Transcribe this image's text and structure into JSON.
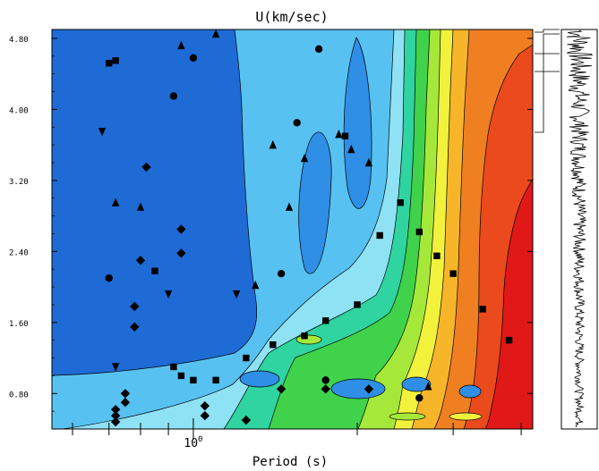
{
  "chart_data": {
    "type": "heatmap",
    "title": "U(km/sec)",
    "xlabel": "Period (s)",
    "ylabel": "",
    "x_scale": "log",
    "x_tick_labels": [
      "10^0"
    ],
    "y_ticks": [
      0.8,
      1.6,
      2.4,
      3.2,
      4.0,
      4.8
    ],
    "y_tick_labels": [
      "0.80",
      "1.60",
      "2.40",
      "3.20",
      "4.00",
      "4.80"
    ],
    "ylim": [
      0.4,
      4.9
    ],
    "legend": "none",
    "colormap": [
      "#1e6bd6",
      "#2f8ee6",
      "#57c2f2",
      "#8fe2f4",
      "#2fd4a0",
      "#3fd24a",
      "#a6e83a",
      "#f2f23c",
      "#f7b52a",
      "#f07f22",
      "#ea4a1c",
      "#e01818"
    ],
    "markers": {
      "diamond": [
        [
          0.72,
          0.48
        ],
        [
          0.72,
          0.55
        ],
        [
          0.72,
          0.62
        ],
        [
          0.75,
          0.7
        ],
        [
          0.75,
          0.8
        ],
        [
          0.78,
          1.55
        ],
        [
          0.78,
          1.78
        ],
        [
          0.8,
          2.3
        ],
        [
          0.82,
          3.35
        ],
        [
          0.95,
          2.38
        ],
        [
          0.95,
          2.65
        ],
        [
          1.05,
          0.55
        ],
        [
          1.05,
          0.66
        ],
        [
          1.25,
          0.5
        ],
        [
          1.45,
          0.85
        ],
        [
          1.75,
          0.85
        ],
        [
          2.1,
          0.85
        ]
      ],
      "square": [
        [
          0.72,
          4.55
        ],
        [
          0.7,
          4.52
        ],
        [
          0.85,
          2.18
        ],
        [
          0.92,
          1.1
        ],
        [
          0.95,
          1.0
        ],
        [
          1.0,
          0.95
        ],
        [
          1.1,
          0.95
        ],
        [
          1.25,
          1.2
        ],
        [
          1.4,
          1.35
        ],
        [
          1.6,
          1.45
        ],
        [
          1.75,
          1.62
        ],
        [
          2.0,
          1.8
        ],
        [
          2.2,
          2.58
        ],
        [
          2.4,
          2.95
        ],
        [
          2.6,
          2.62
        ],
        [
          2.8,
          2.35
        ],
        [
          3.0,
          2.15
        ],
        [
          3.4,
          1.75
        ],
        [
          3.8,
          1.4
        ],
        [
          1.9,
          3.7
        ]
      ],
      "circle": [
        [
          0.7,
          2.1
        ],
        [
          0.92,
          4.15
        ],
        [
          1.0,
          4.58
        ],
        [
          1.55,
          3.85
        ],
        [
          1.7,
          4.68
        ],
        [
          1.45,
          2.15
        ],
        [
          1.75,
          0.95
        ],
        [
          2.6,
          0.75
        ]
      ],
      "triangle_up": [
        [
          0.72,
          2.95
        ],
        [
          0.8,
          2.9
        ],
        [
          0.95,
          4.72
        ],
        [
          1.1,
          4.85
        ],
        [
          1.4,
          3.6
        ],
        [
          1.6,
          3.45
        ],
        [
          1.5,
          2.9
        ],
        [
          1.85,
          3.72
        ],
        [
          1.95,
          3.55
        ],
        [
          2.1,
          3.4
        ],
        [
          1.3,
          2.02
        ],
        [
          2.7,
          0.88
        ]
      ],
      "triangle_down": [
        [
          0.68,
          3.75
        ],
        [
          1.2,
          1.92
        ],
        [
          0.9,
          1.92
        ],
        [
          0.72,
          1.1
        ]
      ]
    }
  },
  "side_panel": {
    "label": "",
    "note": "waveform trace"
  }
}
